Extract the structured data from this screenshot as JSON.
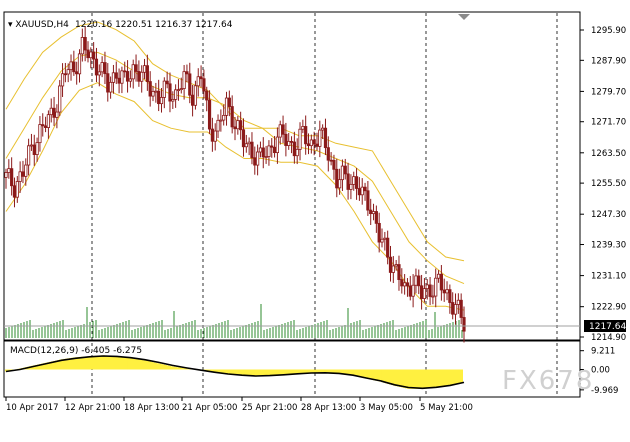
{
  "header": {
    "symbol_timeframe": "XAUUSD,H4",
    "ohlc": "1220.16 1220.51 1216.37 1217.64"
  },
  "price_axis": {
    "ticks": [
      "1295.90",
      "1287.90",
      "1279.70",
      "1271.70",
      "1263.50",
      "1255.50",
      "1247.30",
      "1239.30",
      "1231.10",
      "1222.90",
      "1214.90"
    ],
    "current_price": "1217.64"
  },
  "time_axis": {
    "labels": [
      "10 Apr 2017",
      "12 Apr 21:00",
      "18 Apr 13:00",
      "21 Apr 05:00",
      "25 Apr 21:00",
      "28 Apr 13:00",
      "3 May 05:00",
      "5 May 21:00"
    ]
  },
  "indicator": {
    "label": "MACD(12,26,9) -6.405 -6.275",
    "ticks": [
      "9.211",
      "0.00",
      "-9.969"
    ]
  },
  "watermark": "FX678",
  "colors": {
    "background": "#ffffff",
    "candle": "#8b1a1a",
    "bollinger": "#e8c030",
    "volume": "#2e8b2e",
    "macd_hist": "#ffea00",
    "macd_signal": "#000000",
    "grid": "#000000"
  },
  "chart_data": [
    {
      "type": "candlestick",
      "title": "XAUUSD,H4",
      "ylim": [
        1214.9,
        1298
      ],
      "series": [
        {
          "values": [
            1257,
            1255,
            1258,
            1265,
            1269,
            1272,
            1277,
            1285,
            1286,
            1291,
            1289,
            1286,
            1281,
            1285,
            1282,
            1286,
            1284,
            1281,
            1278,
            1280,
            1279,
            1283,
            1279,
            1284,
            1270,
            1270,
            1276,
            1272,
            1266,
            1264,
            1262,
            1264,
            1268,
            1267,
            1265,
            1268,
            1266,
            1268,
            1264,
            1256,
            1257,
            1256,
            1252,
            1250,
            1241,
            1237,
            1232,
            1227,
            1230,
            1226,
            1228,
            1229,
            1226,
            1223,
            1218
          ]
        },
        {
          "name": "Bollinger Bands",
          "upper": [
            1275,
            1283,
            1290,
            1294,
            1297,
            1298,
            1296,
            1293,
            1287,
            1284,
            1282,
            1280,
            1275,
            1270,
            1270,
            1270,
            1268,
            1268,
            1266,
            1265,
            1264,
            1256,
            1248,
            1240,
            1236,
            1235
          ],
          "middle": [
            1262,
            1270,
            1278,
            1285,
            1289,
            1290,
            1288,
            1285,
            1281,
            1279,
            1278,
            1278,
            1276,
            1272,
            1270,
            1266,
            1265,
            1264,
            1262,
            1260,
            1256,
            1248,
            1240,
            1235,
            1231,
            1229
          ],
          "lower": [
            1248,
            1255,
            1264,
            1274,
            1280,
            1282,
            1279,
            1277,
            1272,
            1270,
            1269,
            1269,
            1265,
            1262,
            1262,
            1261,
            1261,
            1260,
            1255,
            1248,
            1240,
            1235,
            1228,
            1223,
            1223,
            1222
          ]
        }
      ]
    },
    {
      "type": "bar",
      "title": "MACD(12,26,9) -6.405 -6.275",
      "ylim": [
        -12,
        12
      ],
      "series": [
        {
          "name": "MACD",
          "values": [
            -1,
            0.5,
            2,
            3.5,
            5,
            6,
            6.5,
            7,
            6.5,
            5.5,
            4.5,
            3,
            1.5,
            0.5,
            -0.5,
            -1.5,
            -2.5,
            -3,
            -3.5,
            -3,
            -2.5,
            -2,
            -1.5,
            -1.5,
            -2,
            -3,
            -4.5,
            -6,
            -8,
            -9.5,
            -9.5,
            -9,
            -8,
            -6.4
          ]
        },
        {
          "name": "Signal",
          "values": [
            -1,
            0,
            1.5,
            3,
            4.5,
            5.5,
            6.2,
            6.6,
            6.4,
            5.8,
            4.8,
            3.5,
            2,
            0.8,
            -0.3,
            -1.3,
            -2.2,
            -2.8,
            -3.2,
            -3,
            -2.6,
            -2.1,
            -1.7,
            -1.6,
            -1.9,
            -2.8,
            -4.2,
            -5.6,
            -7.5,
            -8.8,
            -9.2,
            -8.7,
            -7.8,
            -6.3
          ]
        }
      ]
    }
  ]
}
